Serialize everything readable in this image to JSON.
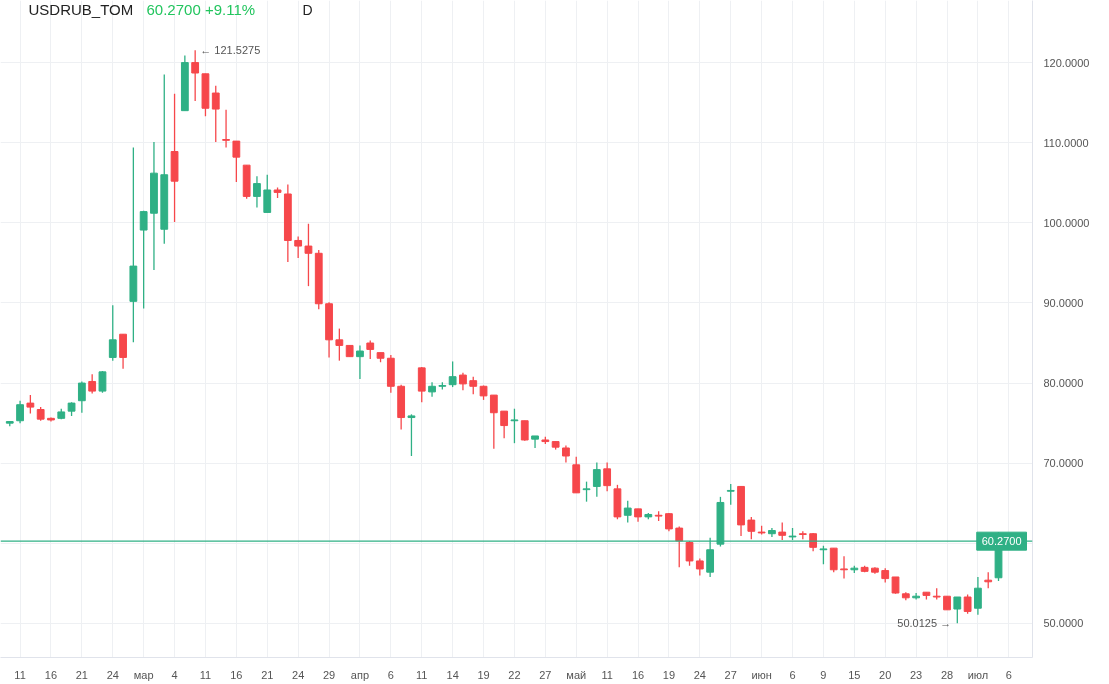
{
  "chart_data": {
    "type": "candlestick",
    "title": "USDRUB_TOM",
    "subtitle": "60.2700 +9.11%",
    "annotations": [
      "D",
      "← 121.5275",
      "50.0125 →"
    ],
    "categories": [
      null,
      "11",
      null,
      null,
      "16",
      null,
      null,
      "21",
      null,
      null,
      "24",
      null,
      null,
      "мар",
      null,
      null,
      "4",
      null,
      null,
      "11",
      null,
      null,
      "16",
      null,
      null,
      "21",
      null,
      null,
      "24",
      null,
      null,
      "29",
      null,
      null,
      "апр",
      null,
      null,
      "6",
      null,
      null,
      "11",
      null,
      null,
      "14",
      null,
      null,
      "19",
      null,
      null,
      "22",
      null,
      null,
      "27",
      null,
      null,
      "май",
      null,
      null,
      "11",
      null,
      null,
      "16",
      null,
      null,
      "19",
      null,
      null,
      "24",
      null,
      null,
      "27",
      null,
      null,
      "июн",
      null,
      null,
      "6",
      null,
      null,
      "9",
      null,
      null,
      "15",
      null,
      null,
      "20",
      null,
      null,
      "23",
      null,
      null,
      "28",
      null,
      null,
      "июл",
      null,
      null,
      "6"
    ],
    "ohlc": [
      [
        75.0,
        75.2,
        74.6,
        75.2
      ],
      [
        75.3,
        77.8,
        75.0,
        77.3
      ],
      [
        77.5,
        78.5,
        76.2,
        77.0
      ],
      [
        76.7,
        77.0,
        75.3,
        75.5
      ],
      [
        75.6,
        75.7,
        75.2,
        75.4
      ],
      [
        75.6,
        76.8,
        75.5,
        76.4
      ],
      [
        76.5,
        77.6,
        75.9,
        77.5
      ],
      [
        77.8,
        80.2,
        76.3,
        80.0
      ],
      [
        80.2,
        81.1,
        78.7,
        79.0
      ],
      [
        79.0,
        81.5,
        78.8,
        81.4
      ],
      [
        83.2,
        89.7,
        82.8,
        85.4
      ],
      [
        86.1,
        86.1,
        81.8,
        83.2
      ],
      [
        90.2,
        109.4,
        85.1,
        94.6
      ],
      [
        99.1,
        101.5,
        89.3,
        101.4
      ],
      [
        101.2,
        110.1,
        94.1,
        106.2
      ],
      [
        99.2,
        118.5,
        97.4,
        106.0
      ],
      [
        108.9,
        116.1,
        100.1,
        105.2
      ],
      [
        114.0,
        120.9,
        114.0,
        120.0
      ],
      [
        120.0,
        121.5275,
        115.2,
        118.7
      ],
      [
        118.6,
        118.6,
        113.3,
        114.3
      ],
      [
        116.2,
        117.1,
        110.1,
        114.2
      ],
      [
        110.4,
        114.1,
        109.4,
        110.3
      ],
      [
        110.2,
        110.2,
        105.1,
        108.2
      ],
      [
        107.2,
        107.2,
        103.0,
        103.3
      ],
      [
        103.3,
        105.8,
        101.9,
        104.9
      ],
      [
        101.3,
        106.0,
        101.3,
        104.1
      ],
      [
        104.1,
        104.4,
        103.1,
        103.8
      ],
      [
        103.6,
        104.8,
        95.1,
        97.8
      ],
      [
        97.8,
        98.3,
        95.6,
        97.1
      ],
      [
        97.1,
        99.9,
        92.1,
        96.2
      ],
      [
        96.2,
        96.6,
        89.2,
        89.9
      ],
      [
        89.9,
        90.1,
        83.2,
        85.4
      ],
      [
        85.4,
        86.8,
        82.8,
        84.7
      ],
      [
        84.7,
        84.7,
        83.3,
        83.3
      ],
      [
        83.3,
        84.7,
        80.5,
        84.0
      ],
      [
        85.0,
        85.3,
        83.0,
        84.2
      ],
      [
        83.8,
        83.8,
        82.6,
        83.1
      ],
      [
        83.1,
        83.5,
        78.8,
        79.6
      ],
      [
        79.6,
        79.8,
        74.2,
        75.7
      ],
      [
        75.7,
        76.1,
        70.9,
        75.9
      ],
      [
        81.9,
        82.0,
        77.6,
        79.0
      ],
      [
        78.9,
        80.1,
        78.3,
        79.6
      ],
      [
        79.6,
        80.1,
        79.2,
        79.7
      ],
      [
        79.8,
        82.7,
        79.5,
        80.8
      ],
      [
        81.0,
        81.3,
        79.1,
        79.9
      ],
      [
        80.3,
        80.8,
        78.6,
        79.6
      ],
      [
        79.6,
        79.7,
        77.9,
        78.4
      ],
      [
        78.5,
        78.5,
        71.8,
        76.3
      ],
      [
        76.5,
        76.5,
        73.1,
        74.7
      ],
      [
        75.3,
        76.8,
        72.5,
        75.4
      ],
      [
        75.3,
        75.3,
        72.8,
        72.9
      ],
      [
        73.0,
        73.4,
        71.9,
        73.4
      ],
      [
        72.9,
        73.3,
        72.4,
        72.7
      ],
      [
        72.7,
        72.7,
        71.7,
        72.0
      ],
      [
        71.9,
        72.2,
        70.1,
        70.9
      ],
      [
        69.8,
        70.8,
        66.3,
        66.3
      ],
      [
        66.7,
        67.7,
        65.2,
        66.8
      ],
      [
        67.1,
        70.1,
        65.8,
        69.2
      ],
      [
        69.3,
        70.1,
        66.5,
        67.2
      ],
      [
        66.8,
        67.3,
        63.0,
        63.3
      ],
      [
        63.5,
        65.3,
        62.6,
        64.4
      ],
      [
        64.3,
        64.3,
        62.7,
        63.3
      ],
      [
        63.3,
        63.8,
        63.0,
        63.6
      ],
      [
        63.5,
        64.0,
        62.8,
        63.4
      ],
      [
        63.7,
        63.8,
        61.5,
        61.8
      ],
      [
        61.9,
        62.1,
        57.0,
        60.3
      ],
      [
        60.1,
        60.3,
        57.2,
        57.8
      ],
      [
        57.8,
        58.1,
        56.0,
        56.8
      ],
      [
        56.4,
        60.7,
        55.8,
        59.2
      ],
      [
        59.9,
        65.8,
        59.6,
        65.1
      ],
      [
        66.5,
        67.4,
        64.8,
        66.6
      ],
      [
        67.1,
        67.1,
        60.9,
        62.3
      ],
      [
        62.9,
        63.3,
        60.5,
        61.5
      ],
      [
        61.4,
        62.2,
        61.1,
        61.3
      ],
      [
        61.2,
        61.9,
        60.8,
        61.6
      ],
      [
        61.4,
        62.6,
        60.4,
        61.0
      ],
      [
        60.8,
        61.9,
        60.4,
        60.9
      ],
      [
        61.2,
        61.5,
        60.5,
        61.1
      ],
      [
        61.2,
        61.3,
        59.0,
        59.5
      ],
      [
        59.2,
        59.7,
        57.4,
        59.3
      ],
      [
        59.4,
        59.4,
        56.4,
        56.7
      ],
      [
        56.8,
        58.4,
        55.6,
        56.7
      ],
      [
        56.7,
        57.2,
        56.3,
        56.9
      ],
      [
        57.0,
        57.2,
        56.4,
        56.5
      ],
      [
        56.9,
        57.0,
        56.2,
        56.4
      ],
      [
        56.6,
        56.9,
        55.1,
        55.6
      ],
      [
        55.8,
        55.8,
        53.7,
        53.8
      ],
      [
        53.7,
        53.9,
        52.9,
        53.2
      ],
      [
        53.2,
        53.8,
        53.0,
        53.4
      ],
      [
        53.9,
        53.9,
        53.0,
        53.5
      ],
      [
        53.4,
        54.4,
        53.0,
        53.3
      ],
      [
        53.4,
        53.4,
        51.7,
        51.7
      ],
      [
        51.8,
        53.3,
        50.0125,
        53.3
      ],
      [
        53.3,
        53.6,
        51.2,
        51.5
      ],
      [
        51.9,
        55.8,
        51.1,
        54.4
      ],
      [
        55.4,
        56.4,
        54.4,
        55.2
      ],
      [
        55.7,
        61.4,
        55.3,
        60.27
      ],
      null
    ],
    "colors": [
      "#2fb085",
      "#2fb085",
      "#f6474b",
      "#f6474b",
      "#f6474b",
      "#2fb085",
      "#2fb085",
      "#2fb085",
      "#f6474b",
      "#2fb085",
      "#2fb085",
      "#f6474b",
      "#2fb085",
      "#2fb085",
      "#2fb085",
      "#2fb085",
      "#f6474b",
      "#2fb085",
      "#f6474b",
      "#f6474b",
      "#f6474b",
      "#f6474b",
      "#f6474b",
      "#f6474b",
      "#2fb085",
      "#2fb085",
      "#f6474b",
      "#f6474b",
      "#f6474b",
      "#f6474b",
      "#f6474b",
      "#f6474b",
      "#f6474b",
      "#f6474b",
      "#2fb085",
      "#f6474b",
      "#f6474b",
      "#f6474b",
      "#f6474b",
      "#2fb085",
      "#f6474b",
      "#2fb085",
      "#2fb085",
      "#2fb085",
      "#f6474b",
      "#f6474b",
      "#f6474b",
      "#f6474b",
      "#f6474b",
      "#2fb085",
      "#f6474b",
      "#2fb085",
      "#f6474b",
      "#f6474b",
      "#f6474b",
      "#f6474b",
      "#2fb085",
      "#2fb085",
      "#f6474b",
      "#f6474b",
      "#2fb085",
      "#f6474b",
      "#2fb085",
      "#f6474b",
      "#f6474b",
      "#f6474b",
      "#f6474b",
      "#f6474b",
      "#2fb085",
      "#2fb085",
      "#2fb085",
      "#f6474b",
      "#f6474b",
      "#f6474b",
      "#2fb085",
      "#f6474b",
      "#2fb085",
      "#f6474b",
      "#f6474b",
      "#2fb085",
      "#f6474b",
      "#f6474b",
      "#2fb085",
      "#f6474b",
      "#f6474b",
      "#f6474b",
      "#f6474b",
      "#f6474b",
      "#2fb085",
      "#f6474b",
      "#f6474b",
      "#f6474b",
      "#2fb085",
      "#f6474b",
      "#2fb085",
      "#f6474b",
      "#2fb085",
      null
    ],
    "ylim": [
      45.75,
      127.75
    ],
    "yticks": [
      {
        "value": 50,
        "label": "50.0000"
      },
      {
        "value": 60,
        "label": null
      },
      {
        "value": 70,
        "label": "70.0000"
      },
      {
        "value": 80,
        "label": "80.0000"
      },
      {
        "value": 90,
        "label": "90.0000"
      },
      {
        "value": 100,
        "label": "100.0000"
      },
      {
        "value": 110,
        "label": "110.0000"
      },
      {
        "value": 120,
        "label": "120.0000"
      }
    ],
    "ref_lines": [
      {
        "axis": "y",
        "value": 60.27,
        "label": "60.2700",
        "color": "#2fb085"
      }
    ],
    "grid": true
  }
}
